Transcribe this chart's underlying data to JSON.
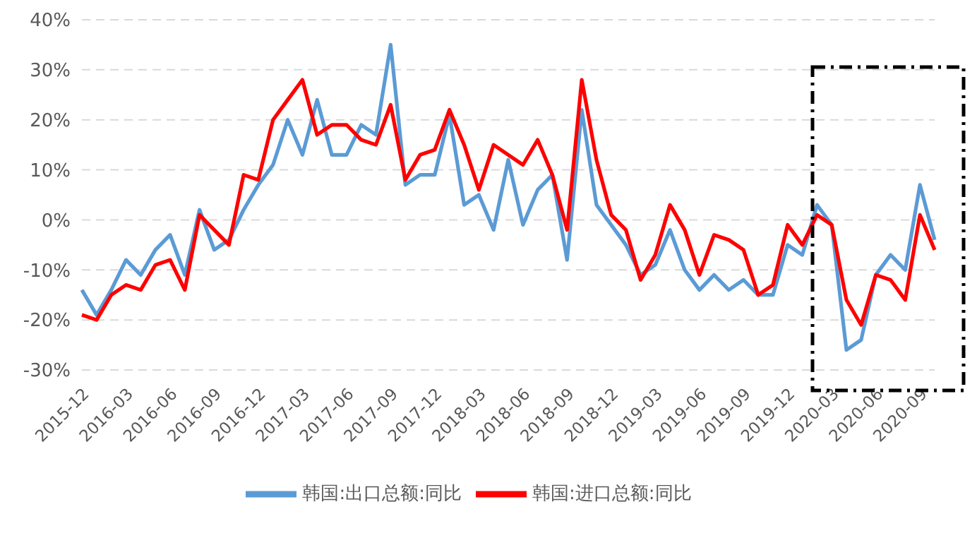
{
  "chart_data": {
    "type": "line",
    "categories": [
      "2015-12",
      null,
      null,
      "2016-03",
      null,
      null,
      "2016-06",
      null,
      null,
      "2016-09",
      null,
      null,
      "2016-12",
      null,
      null,
      "2017-03",
      null,
      null,
      "2017-06",
      null,
      null,
      "2017-09",
      null,
      null,
      "2017-12",
      null,
      null,
      "2018-03",
      null,
      null,
      "2018-06",
      null,
      null,
      "2018-09",
      null,
      null,
      "2018-12",
      null,
      null,
      "2019-03",
      null,
      null,
      "2019-06",
      null,
      null,
      "2019-09",
      null,
      null,
      "2019-12",
      null,
      null,
      "2020-03",
      null,
      null,
      "2020-06",
      null,
      null,
      "2020-09",
      null
    ],
    "series": [
      {
        "name": "韩国:出口总额:同比",
        "color": "#5b9bd5",
        "values": [
          -14,
          -19,
          -14,
          -8,
          -11,
          -6,
          -3,
          -11,
          2,
          -6,
          -4,
          2,
          7,
          11,
          20,
          13,
          24,
          13,
          13,
          19,
          17,
          35,
          7,
          9,
          9,
          21,
          3,
          5,
          -2,
          12,
          -1,
          6,
          9,
          -8,
          22,
          3,
          -1,
          -5,
          -11,
          -9,
          -2,
          -10,
          -14,
          -11,
          -14,
          -12,
          -15,
          -15,
          -5,
          -7,
          3,
          -1,
          -26,
          -24,
          -11,
          -7,
          -10,
          7,
          -4
        ]
      },
      {
        "name": "韩国:进口总额:同比",
        "color": "#ff0000",
        "values": [
          -19,
          -20,
          -15,
          -13,
          -14,
          -9,
          -8,
          -14,
          1,
          -2,
          -5,
          9,
          8,
          20,
          24,
          28,
          17,
          19,
          19,
          16,
          15,
          23,
          8,
          13,
          14,
          22,
          15,
          6,
          15,
          13,
          11,
          16,
          9,
          -2,
          28,
          12,
          1,
          -2,
          -12,
          -7,
          3,
          -2,
          -11,
          -3,
          -4,
          -6,
          -15,
          -13,
          -1,
          -5,
          1,
          -1,
          -16,
          -21,
          -11,
          -12,
          -16,
          1,
          -6
        ]
      }
    ],
    "ylim": [
      -30,
      40
    ],
    "yticks": [
      {
        "value": -30,
        "label": "-30%"
      },
      {
        "value": -20,
        "label": "-20%"
      },
      {
        "value": -10,
        "label": "-10%"
      },
      {
        "value": 0,
        "label": "0%"
      },
      {
        "value": 10,
        "label": "10%"
      },
      {
        "value": 20,
        "label": "20%"
      },
      {
        "value": 30,
        "label": "30%"
      },
      {
        "value": 40,
        "label": "40%"
      }
    ],
    "grid": "y",
    "legend": "bottom",
    "marker": "none",
    "line_style": "solid"
  }
}
